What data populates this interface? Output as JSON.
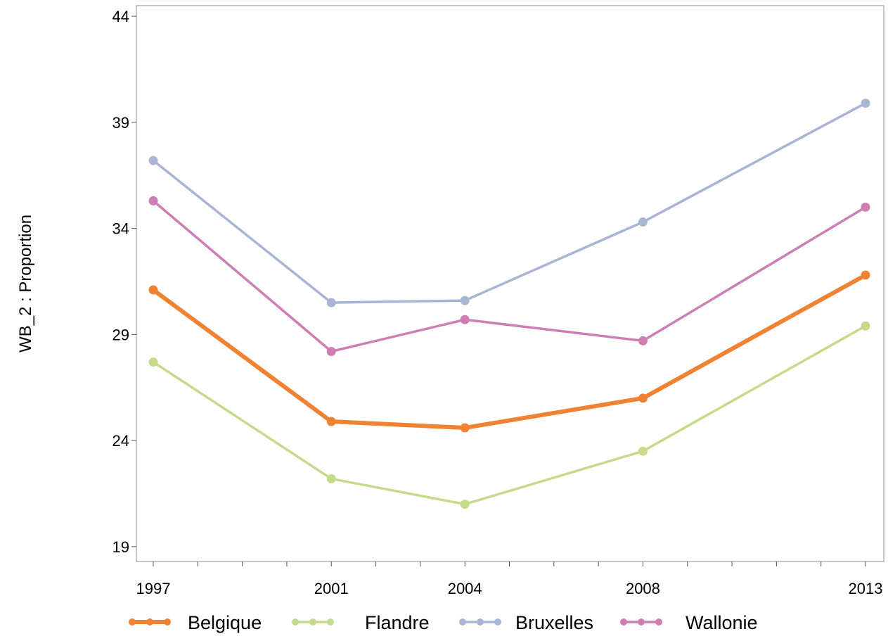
{
  "chart_data": {
    "type": "line",
    "title": "",
    "xlabel": "",
    "ylabel": "WB_2 : Proportion",
    "x": [
      1997,
      2001,
      2004,
      2008,
      2013
    ],
    "xticks": [
      1997,
      2001,
      2004,
      2008,
      2013
    ],
    "xlim": [
      1997,
      2013
    ],
    "ylim": [
      18.3,
      44.5
    ],
    "yticks": [
      19,
      24,
      29,
      34,
      39,
      44
    ],
    "grid": false,
    "legend_position": "bottom",
    "series": [
      {
        "name": "Belgique",
        "color": "#F08233",
        "values": [
          31.1,
          24.9,
          24.6,
          26.0,
          31.8
        ]
      },
      {
        "name": "Flandre",
        "color": "#C6DA8C",
        "values": [
          27.7,
          22.2,
          21.0,
          23.5,
          29.4
        ]
      },
      {
        "name": "Bruxelles",
        "color": "#A9B5D4",
        "values": [
          37.2,
          30.5,
          30.6,
          34.3,
          39.9
        ]
      },
      {
        "name": "Wallonie",
        "color": "#CD7FB3",
        "values": [
          35.3,
          28.2,
          29.7,
          28.7,
          35.0
        ]
      }
    ]
  }
}
